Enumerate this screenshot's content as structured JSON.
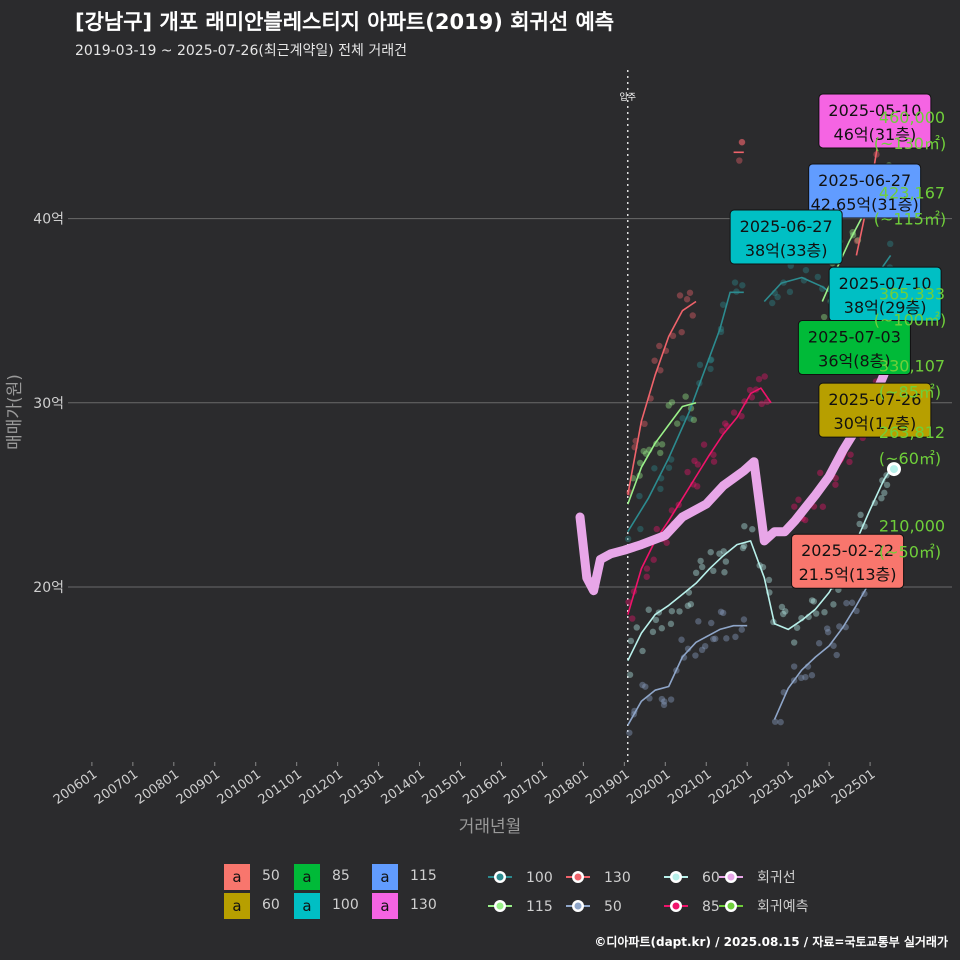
{
  "title": "[강남구] 개포 래미안블레스티지 아파트(2019) 회귀선 예측",
  "subtitle": "2019-03-19 ~ 2025-07-26(최근계약일) 전체 거래건",
  "footer": "©디아파트(dapt.kr) / 2025.08.15 / 자료=국토교통부 실거래가",
  "colors": {
    "background": "#2b2b2d",
    "s50": "#f8766d",
    "s60": "#b79f00",
    "s85": "#00ba38",
    "s100": "#00bfc4",
    "s115": "#619cff",
    "s130": "#f564e3",
    "line50": "#8fa6c9",
    "line60": "#b8f0ea",
    "line85": "#f0136b",
    "line100": "#2c8b8f",
    "line115": "#9af089",
    "line130": "#f0636b",
    "regression": "#e8a6e8",
    "forecast_text": "#6fcf3a"
  },
  "chart_data": {
    "type": "line",
    "xlabel": "거래년월",
    "ylabel": "매매가(원)",
    "x_tick_labels": [
      "200601",
      "200701",
      "200801",
      "200901",
      "201001",
      "201101",
      "201201",
      "201301",
      "201401",
      "201501",
      "201601",
      "201701",
      "201801",
      "201901",
      "202001",
      "202101",
      "202201",
      "202301",
      "202401",
      "202501"
    ],
    "xlim": [
      "2005-06",
      "2027-01"
    ],
    "ylim": [
      10.5,
      48.5
    ],
    "y_unit": "억",
    "y_ticks": [
      20,
      30,
      40
    ],
    "y_tick_labels": [
      "20억",
      "30억",
      "40억"
    ],
    "move_in_marker": {
      "x": "2019-02",
      "label": "입주"
    },
    "series": [
      {
        "name": "50",
        "color_key": "line50",
        "x": [
          "2019-02",
          "2019-06",
          "2019-10",
          "2020-02",
          "2020-06",
          "2020-10",
          "2021-02",
          "2021-05",
          "2021-09",
          "2022-01"
        ],
        "values": [
          12.5,
          13.8,
          14.4,
          14.6,
          16.2,
          17.0,
          17.4,
          17.7,
          17.9,
          17.9
        ]
      },
      {
        "name": "50",
        "color_key": "line50",
        "x": [
          "2022-09",
          "2023-01",
          "2023-05",
          "2023-09",
          "2024-01",
          "2024-05",
          "2024-09",
          "2025-01",
          "2025-05",
          "2025-07"
        ],
        "values": [
          12.8,
          14.5,
          15.5,
          16.2,
          16.8,
          17.8,
          19.0,
          20.3,
          21.0,
          21.0
        ]
      },
      {
        "name": "60",
        "color_key": "line60",
        "x": [
          "2019-02",
          "2019-06",
          "2019-10",
          "2020-02",
          "2020-06",
          "2020-10",
          "2021-02",
          "2021-06",
          "2021-10",
          "2022-02",
          "2022-06",
          "2022-09",
          "2023-01",
          "2023-05",
          "2023-09",
          "2024-01",
          "2024-05",
          "2024-09",
          "2025-01",
          "2025-05",
          "2025-07"
        ],
        "values": [
          16.0,
          17.5,
          18.5,
          19.0,
          19.6,
          20.2,
          21.0,
          21.7,
          22.3,
          22.5,
          20.5,
          18.0,
          17.7,
          18.2,
          18.8,
          19.7,
          21.0,
          22.5,
          24.2,
          25.8,
          26.4
        ]
      },
      {
        "name": "85",
        "color_key": "line85",
        "x": [
          "2019-02",
          "2019-06",
          "2019-10",
          "2020-02",
          "2020-06",
          "2020-10",
          "2021-02",
          "2021-06",
          "2021-10",
          "2022-02",
          "2022-05",
          "2022-08"
        ],
        "values": [
          18.5,
          21.0,
          22.5,
          23.6,
          24.8,
          26.0,
          27.2,
          28.3,
          29.2,
          30.5,
          30.8,
          30.0
        ]
      },
      {
        "name": "85",
        "color_key": "line85",
        "x": [
          "2023-01",
          "2023-05",
          "2023-09",
          "2024-01",
          "2024-05",
          "2024-09",
          "2025-01",
          "2025-05",
          "2025-07"
        ],
        "values": [
          23.2,
          24.0,
          24.8,
          25.8,
          26.9,
          28.5,
          30.0,
          31.8,
          33.0
        ]
      },
      {
        "name": "100",
        "color_key": "line100",
        "x": [
          "2019-02",
          "2019-08",
          "2020-02",
          "2020-08",
          "2021-02",
          "2021-05",
          "2021-08",
          "2021-12"
        ],
        "values": [
          23.0,
          24.8,
          27.0,
          29.5,
          32.5,
          34.0,
          36.0,
          36.0
        ]
      },
      {
        "name": "100",
        "color_key": "line100",
        "x": [
          "2022-06",
          "2022-11",
          "2023-05",
          "2023-11",
          "2024-05",
          "2024-11",
          "2025-04",
          "2025-07"
        ],
        "values": [
          35.5,
          36.5,
          36.8,
          36.3,
          35.5,
          36.0,
          37.2,
          38.0
        ]
      },
      {
        "name": "115",
        "color_key": "line115",
        "x": [
          "2019-02",
          "2019-06",
          "2019-10",
          "2020-02",
          "2020-06",
          "2020-10"
        ],
        "values": [
          24.5,
          26.5,
          27.8,
          28.8,
          29.8,
          30.0
        ]
      },
      {
        "name": "115",
        "color_key": "line115",
        "x": [
          "2023-11",
          "2024-03",
          "2024-07",
          "2024-11",
          "2025-03",
          "2025-07"
        ],
        "values": [
          35.5,
          37.2,
          38.8,
          40.2,
          41.6,
          42.65
        ]
      },
      {
        "name": "130",
        "color_key": "line130",
        "x": [
          "2019-02",
          "2019-06",
          "2019-10",
          "2020-02",
          "2020-06",
          "2020-10"
        ],
        "values": [
          25.0,
          29.0,
          31.5,
          33.6,
          35.0,
          35.5
        ]
      },
      {
        "name": "130",
        "color_key": "line130",
        "x": [
          "2021-09",
          "2021-12"
        ],
        "values": [
          43.6,
          43.6
        ]
      },
      {
        "name": "130",
        "color_key": "line130",
        "x": [
          "2024-09",
          "2025-01",
          "2025-05"
        ],
        "values": [
          38.0,
          41.5,
          46.0
        ]
      },
      {
        "name": "회귀선",
        "color_key": "regression",
        "x": [
          "2017-12",
          "2018-02",
          "2018-04",
          "2018-06",
          "2018-09",
          "2019-01",
          "2019-06",
          "2020-01",
          "2020-06",
          "2021-01",
          "2021-06",
          "2021-12",
          "2022-03",
          "2022-06",
          "2022-09",
          "2022-12",
          "2023-03",
          "2023-06",
          "2023-09",
          "2024-01",
          "2024-05",
          "2024-09",
          "2025-01",
          "2025-05",
          "2025-07"
        ],
        "values": [
          23.8,
          20.5,
          19.8,
          21.5,
          21.8,
          22.0,
          22.3,
          22.8,
          23.8,
          24.5,
          25.5,
          26.3,
          26.8,
          22.5,
          23.0,
          23.0,
          23.6,
          24.3,
          25.0,
          26.0,
          27.4,
          28.6,
          29.8,
          31.5,
          32.5
        ]
      }
    ],
    "forecast_points": [
      {
        "name": "130",
        "y": 46.0,
        "color_key": "line130"
      },
      {
        "name": "115",
        "y": 42.3,
        "color_key": "line115"
      },
      {
        "name": "100",
        "y": 36.5,
        "color_key": "line100"
      },
      {
        "name": "85",
        "y": 33.0,
        "color_key": "line85"
      },
      {
        "name": "60",
        "y": 26.4,
        "color_key": "line60"
      },
      {
        "name": "50",
        "y": 21.0,
        "color_key": "line50"
      }
    ],
    "scatter_summary": "거래건 개별 점 (반투명)",
    "annotations": [
      {
        "date": "2025-05-10",
        "price": "46억(31층)",
        "color_key": "s130",
        "box_x": "2023-10",
        "box_y": 45.3
      },
      {
        "date": "2025-06-27",
        "price": "42.65억(31층)",
        "color_key": "s115",
        "box_x": "2023-07",
        "box_y": 41.5
      },
      {
        "date": "2025-06-27",
        "price": "38억(33층)",
        "color_key": "s100",
        "box_x": "2021-08",
        "box_y": 39.0
      },
      {
        "date": "2025-07-10",
        "price": "38억(29층)",
        "color_key": "s100",
        "box_x": "2024-01",
        "box_y": 35.9
      },
      {
        "date": "2025-07-03",
        "price": "36억(8층)",
        "color_key": "s85",
        "box_x": "2023-04",
        "box_y": 33.0
      },
      {
        "date": "2025-07-26",
        "price": "30억(17층)",
        "color_key": "s60",
        "box_x": "2023-10",
        "box_y": 29.6
      },
      {
        "date": "2025-02-22",
        "price": "21.5억(13층)",
        "color_key": "s50",
        "box_x": "2023-02",
        "box_y": 21.4
      }
    ],
    "forecast_labels": [
      {
        "value": "460,000",
        "area": "(~130㎡)",
        "y": 45.2
      },
      {
        "value": "423,167",
        "area": "(~115㎡)",
        "y": 41.1
      },
      {
        "value": "365,333",
        "area": "(~100㎡)",
        "y": 35.6
      },
      {
        "value": "330,107",
        "area": "(~85㎡)",
        "y": 31.7
      },
      {
        "value": "263,812",
        "area": "(~60㎡)",
        "y": 28.1
      },
      {
        "value": "210,000",
        "area": "(~50㎡)",
        "y": 23.0
      }
    ],
    "legend": {
      "position": "bottom",
      "box_items": [
        {
          "label": "50",
          "color_key": "s50"
        },
        {
          "label": "60",
          "color_key": "s60"
        },
        {
          "label": "85",
          "color_key": "s85"
        },
        {
          "label": "100",
          "color_key": "s100"
        },
        {
          "label": "115",
          "color_key": "s115"
        },
        {
          "label": "130",
          "color_key": "s130"
        }
      ],
      "box_letter": "a",
      "line_items": [
        {
          "label": "100",
          "color_key": "line100"
        },
        {
          "label": "115",
          "color_key": "line115"
        },
        {
          "label": "130",
          "color_key": "line130"
        },
        {
          "label": "50",
          "color_key": "line50"
        },
        {
          "label": "60",
          "color_key": "line60"
        },
        {
          "label": "85",
          "color_key": "line85"
        },
        {
          "label": "회귀선",
          "color_key": "regression"
        },
        {
          "label": "회귀예측",
          "color_key": "forecast_text"
        }
      ]
    }
  }
}
